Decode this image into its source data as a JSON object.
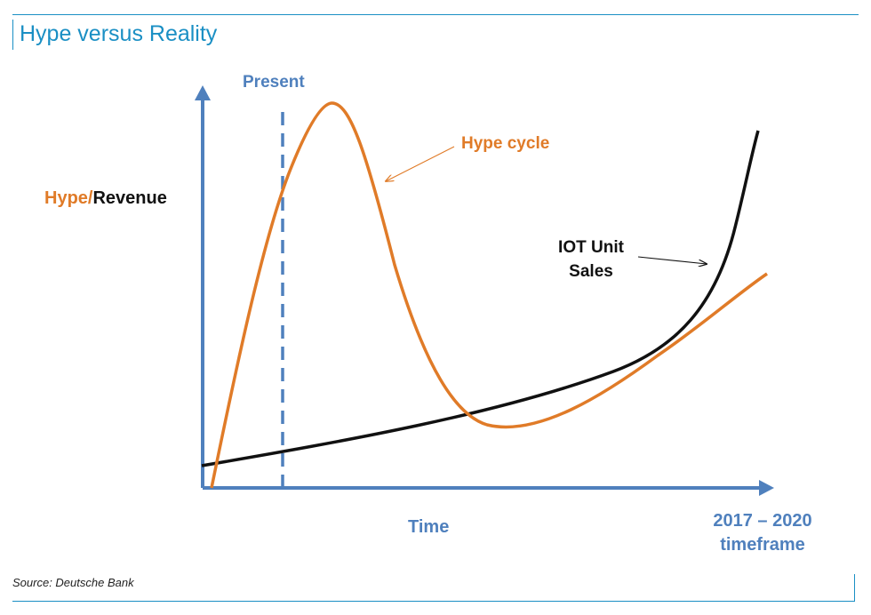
{
  "header": {
    "title": "Hype versus Reality"
  },
  "colors": {
    "accent": "#1a8fc4",
    "axis": "#4f80bd",
    "hype": "#e07b28",
    "sales": "#111111"
  },
  "diagram": {
    "present_label": "Present",
    "hype_cycle_label": "Hype cycle",
    "y_axis_label_hype": "Hype",
    "y_axis_label_separator": "/",
    "y_axis_label_revenue": "Revenue",
    "iot_label": "IOT Unit Sales",
    "x_axis_label": "Time",
    "timeframe_label": "2017 – 2020 timeframe"
  },
  "footer": {
    "source": "Source: Deutsche Bank"
  }
}
